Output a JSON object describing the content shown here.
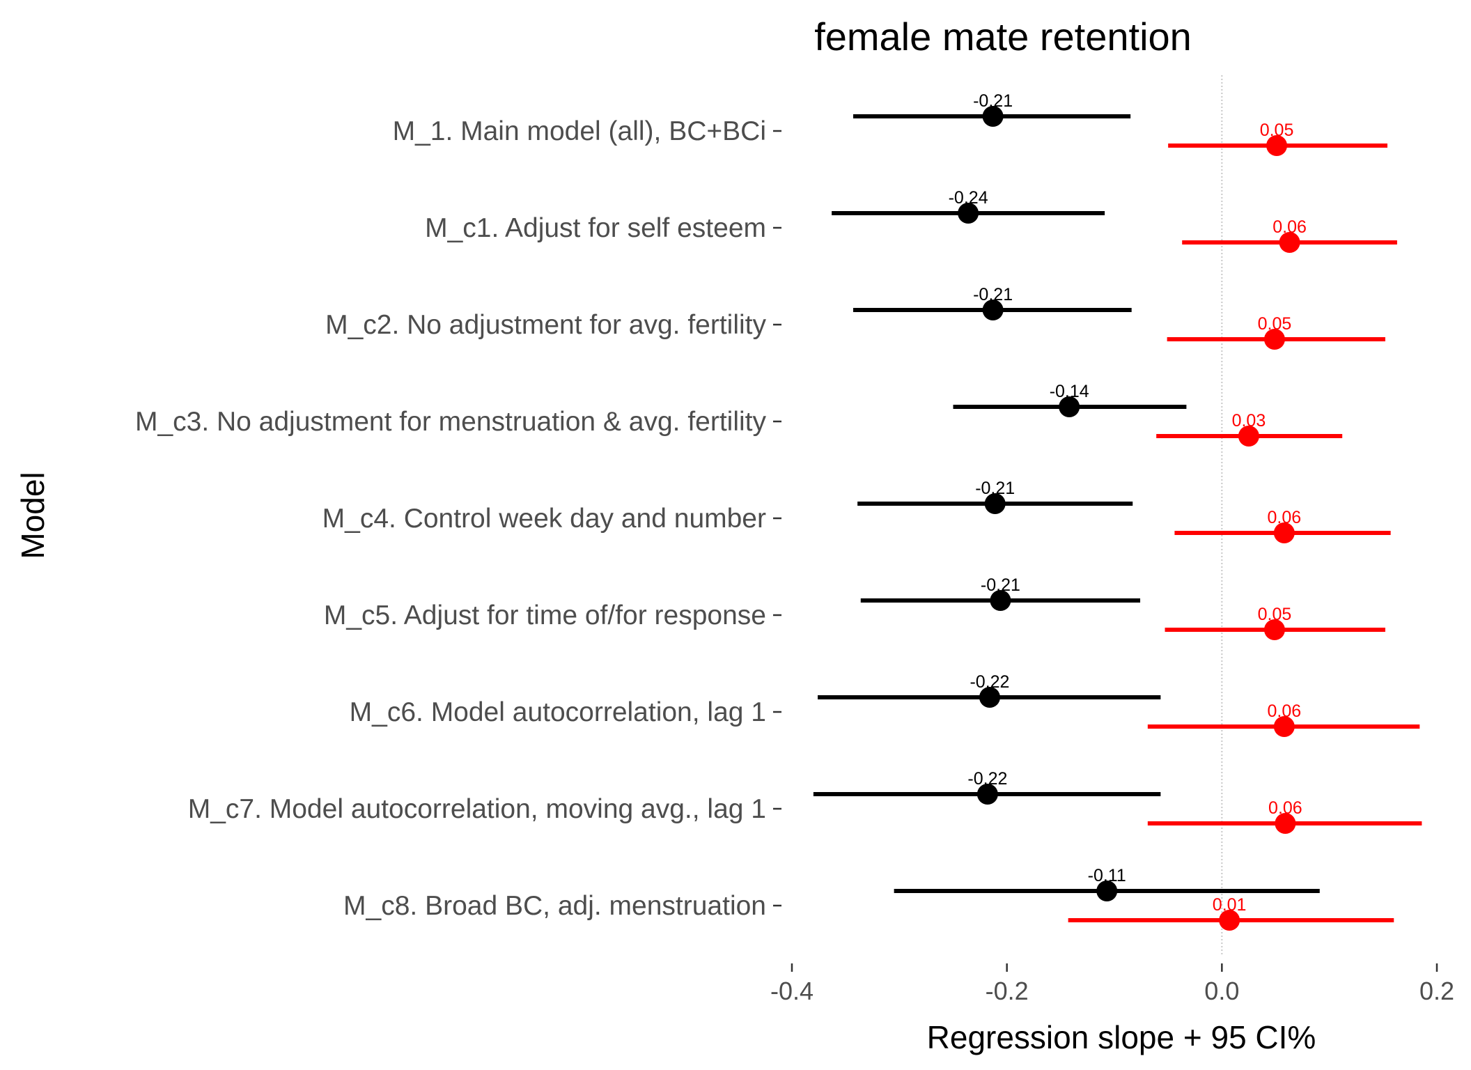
{
  "chart_data": {
    "type": "forest",
    "title": "female mate retention",
    "xlabel": "Regression slope + 95 CI%",
    "ylabel": "Model",
    "xlim": [
      -0.4,
      0.2
    ],
    "xticks": [
      -0.4,
      -0.2,
      0.0,
      0.2
    ],
    "xtick_labels": [
      "-0.4",
      "-0.2",
      "0.0",
      "0.2"
    ],
    "reference_line": 0,
    "grid": false,
    "legend": "none",
    "categories": [
      "M_1. Main model (all), BC+BCi",
      "M_c1. Adjust for self esteem",
      "M_c2. No adjustment for avg. fertility",
      "M_c3. No adjustment for menstruation & avg. fertility",
      "M_c4. Control week day and number",
      "M_c5. Adjust for time of/for response",
      "M_c6. Model autocorrelation, lag 1",
      "M_c7. Model autocorrelation, moving avg., lag 1",
      "M_c8. Broad BC, adj. menstruation"
    ],
    "series": [
      {
        "color": "#000000",
        "estimates": [
          -0.213,
          -0.236,
          -0.213,
          -0.142,
          -0.211,
          -0.206,
          -0.216,
          -0.218,
          -0.107
        ],
        "lower": [
          -0.343,
          -0.363,
          -0.343,
          -0.25,
          -0.339,
          -0.336,
          -0.376,
          -0.38,
          -0.305
        ],
        "upper": [
          -0.085,
          -0.109,
          -0.084,
          -0.033,
          -0.083,
          -0.076,
          -0.057,
          -0.057,
          0.091
        ],
        "labels": [
          "-0.21",
          "-0.24",
          "-0.21",
          "-0.14",
          "-0.21",
          "-0.21",
          "-0.22",
          "-0.22",
          "-0.11"
        ]
      },
      {
        "color": "#ff0000",
        "estimates": [
          0.051,
          0.063,
          0.049,
          0.025,
          0.058,
          0.049,
          0.058,
          0.059,
          0.007
        ],
        "lower": [
          -0.05,
          -0.037,
          -0.051,
          -0.061,
          -0.044,
          -0.053,
          -0.069,
          -0.069,
          -0.143
        ],
        "upper": [
          0.154,
          0.163,
          0.152,
          0.112,
          0.157,
          0.152,
          0.184,
          0.186,
          0.16
        ],
        "labels": [
          "0.05",
          "0.06",
          "0.05",
          "0.03",
          "0.06",
          "0.05",
          "0.06",
          "0.06",
          "0.01"
        ]
      }
    ]
  }
}
